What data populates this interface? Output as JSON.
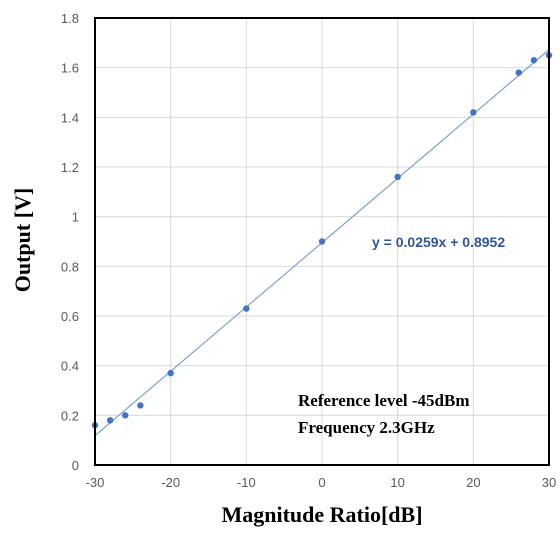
{
  "chart_data": {
    "type": "scatter",
    "xlabel": "Magnitude Ratio[dB]",
    "ylabel": "Output [V]",
    "xlim": [
      -30,
      30
    ],
    "ylim": [
      0,
      1.8
    ],
    "x_ticks": [
      "-30",
      "-20",
      "-10",
      "0",
      "10",
      "20",
      "30"
    ],
    "y_ticks": [
      "0",
      "0.2",
      "0.4",
      "0.6",
      "0.8",
      "1",
      "1.2",
      "1.4",
      "1.6",
      "1.8"
    ],
    "x_tick_values": [
      -30,
      -20,
      -10,
      0,
      10,
      20,
      30
    ],
    "y_tick_values": [
      0,
      0.2,
      0.4,
      0.6,
      0.8,
      1.0,
      1.2,
      1.4,
      1.6,
      1.8
    ],
    "grid": true,
    "series": [
      {
        "x": [
          -30,
          -28,
          -26,
          -24,
          -20,
          -10,
          0,
          10,
          20,
          26,
          28,
          30
        ],
        "y": [
          0.16,
          0.18,
          0.2,
          0.24,
          0.37,
          0.63,
          0.9,
          1.16,
          1.42,
          1.58,
          1.63,
          1.65
        ]
      }
    ],
    "trendline": {
      "slope": 0.0259,
      "intercept": 0.8952,
      "label": "y = 0.0259x + 0.8952"
    },
    "annotations": [
      "Reference level -45dBm",
      "Frequency 2.3GHz"
    ],
    "colors": {
      "points": "#4472c4",
      "trendline": "#7f9fd4",
      "equation": "#2f5597"
    }
  }
}
